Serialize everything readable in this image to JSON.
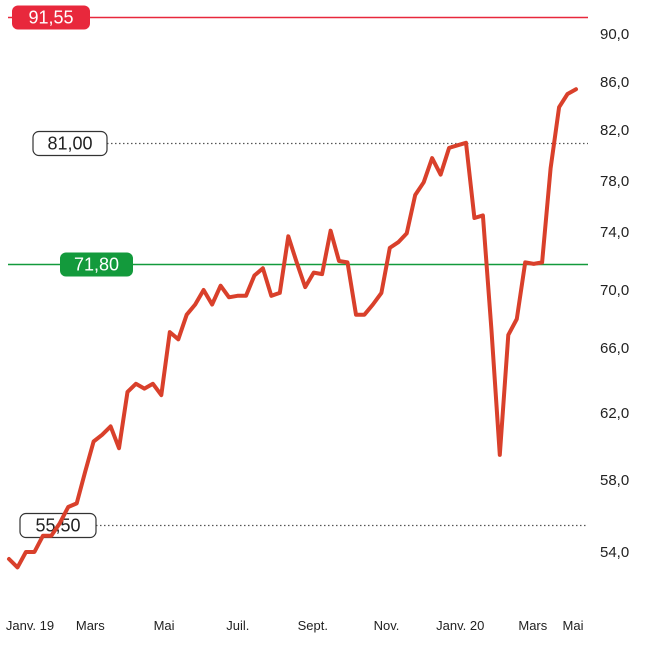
{
  "chart_data": {
    "type": "line",
    "title": "",
    "xlabel": "",
    "ylabel": "",
    "ylim": [
      52,
      92
    ],
    "grid": false,
    "y_ticks": [
      "54,0",
      "58,0",
      "62,0",
      "66,0",
      "70,0",
      "74,0",
      "78,0",
      "82,0",
      "86,0",
      "90,0"
    ],
    "x_ticks": [
      "Janv. 19",
      "Mars",
      "Mai",
      "Juil.",
      "Sept.",
      "Nov.",
      "Janv. 20",
      "Mars",
      "Mai"
    ],
    "reference_lines": [
      {
        "label": "91,55",
        "value": 91.55,
        "style": "solid",
        "color": "#e8283c",
        "box": "filled"
      },
      {
        "label": "81,00",
        "value": 81.0,
        "style": "dotted",
        "color": "#555555",
        "box": "outline"
      },
      {
        "label": "71,80",
        "value": 71.8,
        "style": "solid",
        "color": "#139a3c",
        "box": "filled"
      },
      {
        "label": "55,50",
        "value": 55.5,
        "style": "dotted",
        "color": "#555555",
        "box": "outline"
      }
    ],
    "series": [
      {
        "color": "#d9402b",
        "points": [
          [
            "2019-01-01",
            53.5
          ],
          [
            "2019-01-08",
            52.9
          ],
          [
            "2019-01-15",
            54.0
          ],
          [
            "2019-01-22",
            54.0
          ],
          [
            "2019-01-29",
            54.9
          ],
          [
            "2019-02-05",
            54.9
          ],
          [
            "2019-02-12",
            55.6
          ],
          [
            "2019-02-19",
            56.5
          ],
          [
            "2019-02-26",
            56.7
          ],
          [
            "2019-03-05",
            58.5
          ],
          [
            "2019-03-12",
            60.3
          ],
          [
            "2019-03-19",
            60.7
          ],
          [
            "2019-03-26",
            61.2
          ],
          [
            "2019-04-02",
            59.9
          ],
          [
            "2019-04-09",
            63.3
          ],
          [
            "2019-04-16",
            63.8
          ],
          [
            "2019-04-23",
            63.5
          ],
          [
            "2019-04-30",
            63.8
          ],
          [
            "2019-05-07",
            63.1
          ],
          [
            "2019-05-14",
            67.1
          ],
          [
            "2019-05-21",
            66.6
          ],
          [
            "2019-05-28",
            68.3
          ],
          [
            "2019-06-04",
            69.0
          ],
          [
            "2019-06-11",
            70.0
          ],
          [
            "2019-06-18",
            69.0
          ],
          [
            "2019-06-25",
            70.3
          ],
          [
            "2019-07-02",
            69.5
          ],
          [
            "2019-07-09",
            69.6
          ],
          [
            "2019-07-16",
            69.6
          ],
          [
            "2019-07-23",
            71.0
          ],
          [
            "2019-07-30",
            71.5
          ],
          [
            "2019-08-06",
            69.6
          ],
          [
            "2019-08-13",
            69.8
          ],
          [
            "2019-08-20",
            73.7
          ],
          [
            "2019-08-27",
            71.9
          ],
          [
            "2019-09-03",
            70.2
          ],
          [
            "2019-09-10",
            71.2
          ],
          [
            "2019-09-17",
            71.1
          ],
          [
            "2019-09-24",
            74.1
          ],
          [
            "2019-10-01",
            72.0
          ],
          [
            "2019-10-08",
            71.9
          ],
          [
            "2019-10-15",
            68.3
          ],
          [
            "2019-10-22",
            68.3
          ],
          [
            "2019-10-29",
            69.0
          ],
          [
            "2019-11-05",
            69.8
          ],
          [
            "2019-11-12",
            72.9
          ],
          [
            "2019-11-19",
            73.3
          ],
          [
            "2019-11-26",
            73.9
          ],
          [
            "2019-12-03",
            76.9
          ],
          [
            "2019-12-10",
            77.9
          ],
          [
            "2019-12-17",
            79.8
          ],
          [
            "2019-12-24",
            78.5
          ],
          [
            "2019-12-31",
            80.6
          ],
          [
            "2020-01-07",
            80.8
          ],
          [
            "2020-01-14",
            81.0
          ],
          [
            "2020-01-21",
            75.1
          ],
          [
            "2020-01-28",
            75.3
          ],
          [
            "2020-02-04",
            67.3
          ],
          [
            "2020-02-11",
            59.5
          ],
          [
            "2020-02-18",
            66.9
          ],
          [
            "2020-02-25",
            68.0
          ],
          [
            "2020-03-03",
            71.9
          ],
          [
            "2020-03-10",
            71.8
          ],
          [
            "2020-03-17",
            71.9
          ],
          [
            "2020-03-24",
            79.0
          ],
          [
            "2020-03-31",
            83.9
          ],
          [
            "2020-04-07",
            85.0
          ],
          [
            "2020-04-14",
            85.4
          ]
        ]
      }
    ]
  }
}
